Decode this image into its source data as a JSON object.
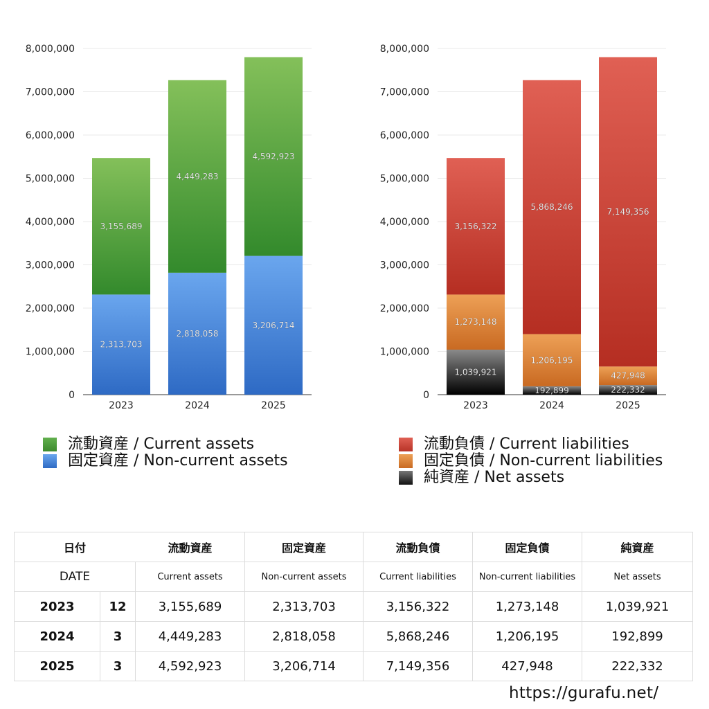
{
  "chart_data": [
    {
      "type": "bar",
      "stacked": true,
      "categories": [
        "2023",
        "2024",
        "2025"
      ],
      "series": [
        {
          "name": "固定資産 / Non-current assets",
          "values": [
            2313703,
            2818058,
            3206714
          ],
          "color": "#4f8fe0"
        },
        {
          "name": "流動資産 / Current assets",
          "values": [
            3155689,
            4449283,
            4592923
          ],
          "color": "#4d9e3c"
        }
      ],
      "data_labels": [
        [
          "2,313,703",
          "2,818,058",
          "3,206,714"
        ],
        [
          "3,155,689",
          "4,449,283",
          "4,592,923"
        ]
      ],
      "y_ticks": [
        "0",
        "1,000,000",
        "2,000,000",
        "3,000,000",
        "4,000,000",
        "5,000,000",
        "6,000,000",
        "7,000,000",
        "8,000,000"
      ],
      "ylim": [
        0,
        8000000
      ],
      "grid": true,
      "legend_position": "bottom"
    },
    {
      "type": "bar",
      "stacked": true,
      "categories": [
        "2023",
        "2024",
        "2025"
      ],
      "series": [
        {
          "name": "純資産 / Net assets",
          "values": [
            1039921,
            192899,
            222332
          ],
          "color": "#222222"
        },
        {
          "name": "固定負債 / Non-current liabilities",
          "values": [
            1273148,
            1206195,
            427948
          ],
          "color": "#e0843a"
        },
        {
          "name": "流動負債 / Current liabilities",
          "values": [
            3156322,
            5868246,
            7149356
          ],
          "color": "#d1463a"
        }
      ],
      "data_labels": [
        [
          "1,039,921",
          "192,899",
          "222,332"
        ],
        [
          "1,273,148",
          "1,206,195",
          "427,948"
        ],
        [
          "3,156,322",
          "5,868,246",
          "7,149,356"
        ]
      ],
      "y_ticks": [
        "0",
        "1,000,000",
        "2,000,000",
        "3,000,000",
        "4,000,000",
        "5,000,000",
        "6,000,000",
        "7,000,000",
        "8,000,000"
      ],
      "ylim": [
        0,
        8000000
      ],
      "grid": true,
      "legend_position": "bottom"
    }
  ],
  "legend_left": [
    {
      "label": "流動資産 / Current assets",
      "color": "#4d9e3c"
    },
    {
      "label": "固定資産 / Non-current assets",
      "color": "#4f8fe0"
    }
  ],
  "legend_right": [
    {
      "label": "流動負債 / Current liabilities",
      "color": "#d1463a"
    },
    {
      "label": "固定負債 / Non-current liabilities",
      "color": "#e0843a"
    },
    {
      "label": "純資産 / Net assets",
      "color": "#222222"
    }
  ],
  "table": {
    "header_jp": [
      "日付",
      "流動資産",
      "固定資産",
      "流動負債",
      "固定負債",
      "純資産"
    ],
    "date_label": "DATE",
    "header_en": [
      "Current assets",
      "Non-current assets",
      "Current liabilities",
      "Non-current liabilities",
      "Net assets"
    ],
    "rows": [
      {
        "year": "2023",
        "month": "12",
        "values": [
          "3,155,689",
          "2,313,703",
          "3,156,322",
          "1,273,148",
          "1,039,921"
        ]
      },
      {
        "year": "2024",
        "month": "3",
        "values": [
          "4,449,283",
          "2,818,058",
          "5,868,246",
          "1,206,195",
          "192,899"
        ]
      },
      {
        "year": "2025",
        "month": "3",
        "values": [
          "4,592,923",
          "3,206,714",
          "7,149,356",
          "427,948",
          "222,332"
        ]
      }
    ]
  },
  "site": "https://gurafu.net/"
}
